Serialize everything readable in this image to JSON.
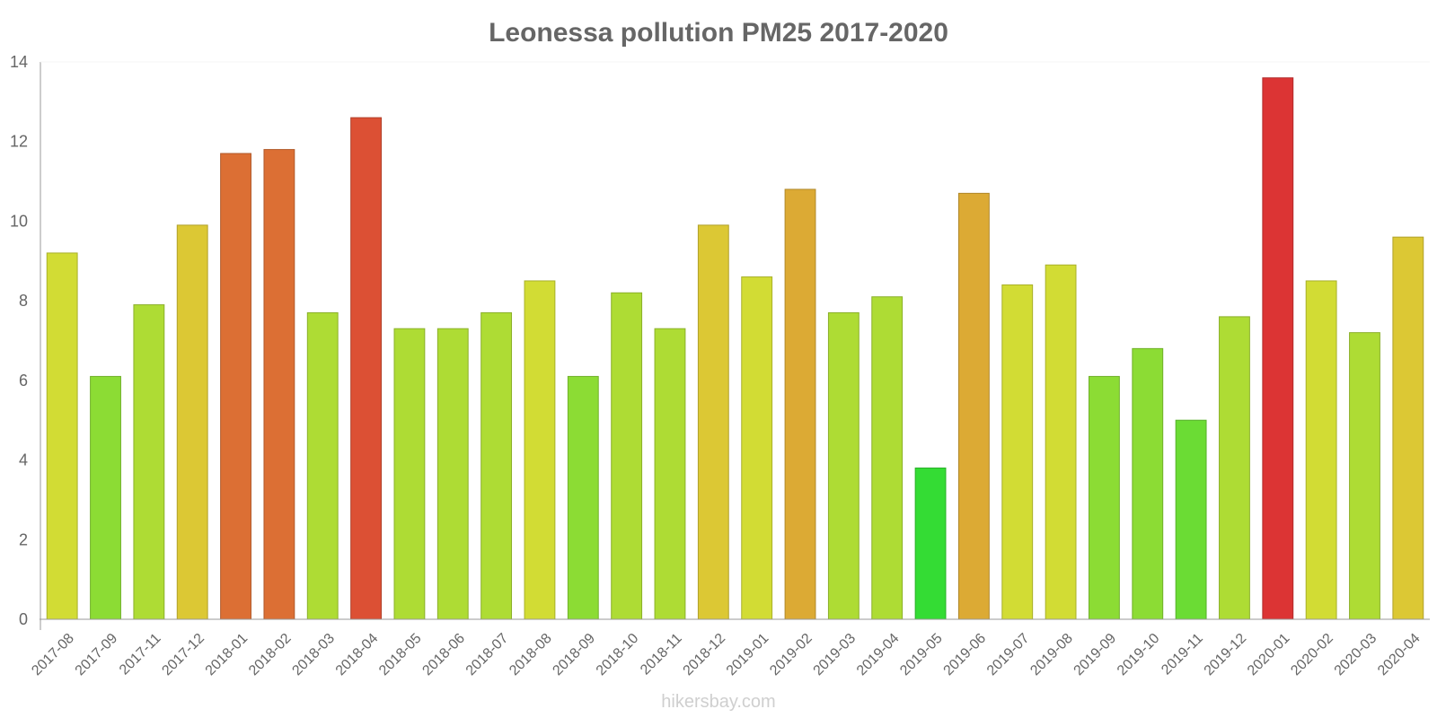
{
  "watermark": "hikersbay.com",
  "chart_data": {
    "type": "bar",
    "title": "Leonessa pollution PM25 2017-2020",
    "xlabel": "",
    "ylabel": "",
    "ylim": [
      0,
      14
    ],
    "yticks": [
      0,
      2,
      4,
      6,
      8,
      10,
      12,
      14
    ],
    "grid": false,
    "categories": [
      "2017-08",
      "2017-09",
      "2017-11",
      "2017-12",
      "2018-01",
      "2018-02",
      "2018-03",
      "2018-04",
      "2018-05",
      "2018-06",
      "2018-07",
      "2018-08",
      "2018-09",
      "2018-10",
      "2018-11",
      "2018-12",
      "2019-01",
      "2019-02",
      "2019-03",
      "2019-04",
      "2019-05",
      "2019-06",
      "2019-07",
      "2019-08",
      "2019-09",
      "2019-10",
      "2019-11",
      "2019-12",
      "2020-01",
      "2020-02",
      "2020-03",
      "2020-04"
    ],
    "values": [
      9.2,
      6.1,
      7.9,
      9.9,
      11.7,
      11.8,
      7.7,
      12.6,
      7.3,
      7.3,
      7.7,
      8.5,
      6.1,
      8.2,
      7.3,
      9.9,
      8.6,
      10.8,
      7.7,
      8.1,
      3.8,
      10.7,
      8.4,
      8.9,
      6.1,
      6.8,
      5.0,
      7.6,
      13.6,
      8.5,
      7.2,
      9.6
    ],
    "colors": [
      "#d2dc34",
      "#8cdc34",
      "#aedc34",
      "#dcc834",
      "#dc6f34",
      "#dc6f34",
      "#aedc34",
      "#dc5034",
      "#aedc34",
      "#aedc34",
      "#aedc34",
      "#d2dc34",
      "#8cdc34",
      "#aedc34",
      "#aedc34",
      "#dcc834",
      "#d2dc34",
      "#dcaa34",
      "#aedc34",
      "#aedc34",
      "#34dc34",
      "#dcaa34",
      "#d2dc34",
      "#d2dc34",
      "#8cdc34",
      "#8cdc34",
      "#6bdc34",
      "#aedc34",
      "#dc3434",
      "#d2dc34",
      "#aedc34",
      "#dcc834"
    ]
  }
}
